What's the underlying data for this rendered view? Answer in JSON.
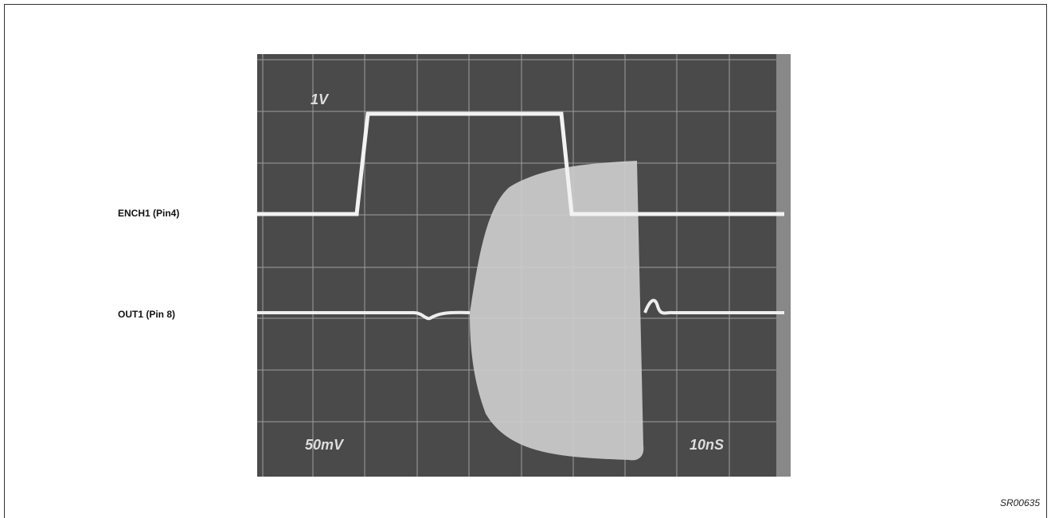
{
  "labels": {
    "ench1": "ENCH1 (Pin4)",
    "out1": "OUT1 (Pin 8)"
  },
  "scope": {
    "ch1_scale": "1V",
    "ch2_scale": "50mV",
    "time_scale": "10nS"
  },
  "figure_id": "SR00635"
}
